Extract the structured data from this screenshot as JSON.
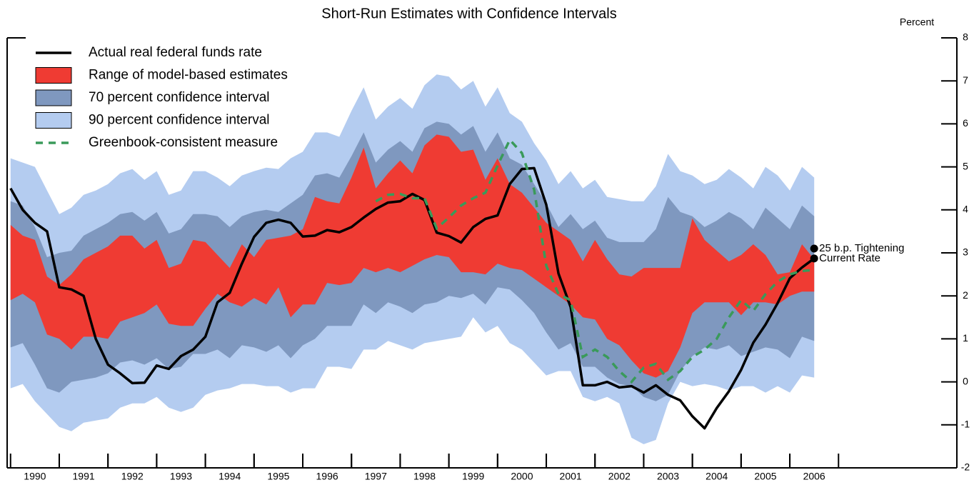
{
  "chart_data": {
    "type": "band-line",
    "title": "Short-Run Estimates with Confidence Intervals",
    "y_axis_label": "Percent",
    "x": [
      1990,
      1990.25,
      1990.5,
      1990.75,
      1991,
      1991.25,
      1991.5,
      1991.75,
      1992,
      1992.25,
      1992.5,
      1992.75,
      1993,
      1993.25,
      1993.5,
      1993.75,
      1994,
      1994.25,
      1994.5,
      1994.75,
      1995,
      1995.25,
      1995.5,
      1995.75,
      1996,
      1996.25,
      1996.5,
      1996.75,
      1997,
      1997.25,
      1997.5,
      1997.75,
      1998,
      1998.25,
      1998.5,
      1998.75,
      1999,
      1999.25,
      1999.5,
      1999.75,
      2000,
      2000.25,
      2000.5,
      2000.75,
      2001,
      2001.25,
      2001.5,
      2001.75,
      2002,
      2002.25,
      2002.5,
      2002.75,
      2003,
      2003.25,
      2003.5,
      2003.75,
      2004,
      2004.25,
      2004.5,
      2004.75,
      2005,
      2005.25,
      2005.5,
      2005.75,
      2006,
      2006.25,
      2006.5
    ],
    "xlim": [
      1989.93,
      2009.43
    ],
    "xticks": [
      {
        "value": 1990.5,
        "label": "1990"
      },
      {
        "value": 1991.5,
        "label": "1991"
      },
      {
        "value": 1992.5,
        "label": "1992"
      },
      {
        "value": 1993.5,
        "label": "1993"
      },
      {
        "value": 1994.5,
        "label": "1994"
      },
      {
        "value": 1995.5,
        "label": "1995"
      },
      {
        "value": 1996.5,
        "label": "1996"
      },
      {
        "value": 1997.5,
        "label": "1997"
      },
      {
        "value": 1998.5,
        "label": "1998"
      },
      {
        "value": 1999.5,
        "label": "1999"
      },
      {
        "value": 2000.5,
        "label": "2000"
      },
      {
        "value": 2001.5,
        "label": "2001"
      },
      {
        "value": 2002.5,
        "label": "2002"
      },
      {
        "value": 2003.5,
        "label": "2003"
      },
      {
        "value": 2004.5,
        "label": "2004"
      },
      {
        "value": 2005.5,
        "label": "2005"
      },
      {
        "value": 2006.5,
        "label": "2006"
      }
    ],
    "ylim": [
      -2,
      8
    ],
    "yticks": [
      -2,
      -1,
      0,
      1,
      2,
      3,
      4,
      5,
      6,
      7,
      8
    ],
    "legend": "top-left",
    "series": [
      {
        "name": "Actual real federal funds rate",
        "style": "line",
        "color": "#000000",
        "values": [
          4.5,
          4.0,
          3.7,
          3.5,
          2.2,
          2.15,
          2.0,
          1.0,
          0.4,
          0.2,
          -0.03,
          -0.02,
          0.38,
          0.3,
          0.6,
          0.75,
          1.05,
          1.85,
          2.07,
          2.75,
          3.37,
          3.7,
          3.77,
          3.7,
          3.38,
          3.4,
          3.53,
          3.48,
          3.6,
          3.82,
          4.02,
          4.17,
          4.2,
          4.37,
          4.23,
          3.47,
          3.39,
          3.24,
          3.6,
          3.79,
          3.87,
          4.6,
          4.95,
          4.97,
          4.12,
          2.52,
          1.74,
          -0.08,
          -0.08,
          0,
          -0.13,
          -0.1,
          -0.25,
          -0.08,
          -0.3,
          -0.43,
          -0.8,
          -1.08,
          -0.61,
          -0.22,
          0.28,
          0.91,
          1.33,
          1.83,
          2.41,
          2.66,
          2.87
        ]
      },
      {
        "name": "Range of model-based estimates",
        "style": "band",
        "color": "#ef3b33",
        "upper": [
          3.65,
          3.4,
          3.3,
          2.45,
          2.25,
          2.5,
          2.85,
          3.0,
          3.15,
          3.4,
          3.4,
          3.1,
          3.3,
          2.65,
          2.75,
          3.3,
          3.25,
          2.95,
          2.65,
          3.2,
          2.9,
          3.3,
          3.35,
          3.4,
          3.55,
          4.3,
          4.2,
          4.15,
          4.75,
          5.45,
          4.5,
          4.85,
          5.15,
          4.85,
          5.5,
          5.75,
          5.7,
          5.35,
          5.4,
          4.7,
          5.2,
          4.6,
          4.4,
          4.05,
          3.7,
          3.5,
          3.3,
          2.8,
          3.3,
          2.85,
          2.5,
          2.45,
          2.65,
          2.65,
          2.65,
          2.65,
          3.8,
          3.3,
          3.05,
          2.8,
          2.95,
          3.2,
          2.95,
          2.5,
          2.55,
          3.2,
          2.85
        ],
        "lower": [
          1.9,
          2.05,
          1.85,
          1.1,
          1.0,
          0.75,
          1.05,
          1.05,
          1.0,
          1.4,
          1.5,
          1.6,
          1.8,
          1.35,
          1.3,
          1.3,
          1.7,
          2.05,
          1.85,
          1.75,
          1.95,
          1.8,
          2.2,
          1.5,
          1.8,
          1.8,
          2.3,
          2.25,
          2.3,
          2.65,
          2.55,
          2.65,
          2.55,
          2.7,
          2.85,
          2.95,
          2.9,
          2.55,
          2.55,
          2.5,
          2.75,
          2.65,
          2.6,
          2.4,
          2.2,
          2.0,
          1.8,
          1.5,
          1.45,
          1.0,
          0.85,
          0.5,
          0.2,
          0.1,
          0.25,
          0.8,
          1.6,
          1.85,
          1.85,
          1.85,
          1.55,
          1.85,
          1.85,
          1.8,
          2.0,
          2.1,
          2.1
        ]
      },
      {
        "name": "70 percent confidence interval",
        "style": "band",
        "color": "#7f98bf",
        "upper": [
          4.2,
          4.1,
          3.6,
          2.9,
          3.0,
          3.05,
          3.4,
          3.55,
          3.7,
          3.9,
          3.95,
          3.75,
          3.95,
          3.45,
          3.55,
          3.9,
          3.9,
          3.85,
          3.6,
          3.85,
          3.95,
          4.0,
          3.95,
          4.15,
          4.35,
          4.8,
          4.85,
          4.75,
          5.25,
          5.8,
          5.1,
          5.4,
          5.6,
          5.35,
          5.9,
          6.05,
          6.0,
          5.75,
          5.95,
          5.35,
          5.8,
          5.2,
          5.05,
          4.6,
          4.15,
          3.6,
          3.9,
          3.55,
          3.75,
          3.35,
          3.25,
          3.25,
          3.25,
          3.55,
          4.3,
          3.95,
          3.85,
          3.6,
          3.75,
          3.95,
          3.8,
          3.55,
          4.05,
          3.8,
          3.55,
          4.1,
          3.85
        ],
        "lower": [
          0.8,
          0.9,
          0.4,
          -0.15,
          -0.25,
          0.0,
          0.05,
          0.1,
          0.2,
          0.45,
          0.5,
          0.4,
          0.55,
          0.3,
          0.35,
          0.65,
          0.65,
          0.75,
          0.55,
          0.85,
          0.8,
          0.7,
          0.85,
          0.55,
          0.85,
          1.0,
          1.3,
          1.3,
          1.3,
          1.8,
          1.6,
          1.85,
          1.75,
          1.6,
          1.8,
          1.85,
          2.0,
          1.95,
          2.05,
          1.8,
          2.2,
          2.15,
          1.9,
          1.6,
          1.15,
          0.75,
          0.9,
          0.35,
          0.35,
          0.1,
          -0.05,
          -0.1,
          -0.35,
          -0.45,
          -0.3,
          0.25,
          0.6,
          0.8,
          0.75,
          0.85,
          0.6,
          0.7,
          0.8,
          0.75,
          0.55,
          1.05,
          0.95
        ]
      },
      {
        "name": "90 percent confidence interval",
        "style": "band",
        "color": "#b4ccf0",
        "upper": [
          5.2,
          5.1,
          5.0,
          4.45,
          3.9,
          4.05,
          4.35,
          4.45,
          4.6,
          4.85,
          4.95,
          4.7,
          4.9,
          4.35,
          4.45,
          4.9,
          4.9,
          4.75,
          4.55,
          4.8,
          4.9,
          4.98,
          4.95,
          5.2,
          5.35,
          5.8,
          5.8,
          5.7,
          6.3,
          6.85,
          6.1,
          6.4,
          6.6,
          6.35,
          6.9,
          7.15,
          7.1,
          6.8,
          7.0,
          6.4,
          6.85,
          6.25,
          6.05,
          5.55,
          5.15,
          4.6,
          4.9,
          4.5,
          4.7,
          4.3,
          4.25,
          4.2,
          4.2,
          4.55,
          5.3,
          4.9,
          4.8,
          4.6,
          4.7,
          4.95,
          4.75,
          4.5,
          5.0,
          4.8,
          4.45,
          5.0,
          4.75
        ],
        "lower": [
          -0.15,
          -0.05,
          -0.45,
          -0.75,
          -1.05,
          -1.15,
          -0.95,
          -0.9,
          -0.85,
          -0.6,
          -0.5,
          -0.5,
          -0.35,
          -0.6,
          -0.7,
          -0.6,
          -0.3,
          -0.2,
          -0.15,
          -0.05,
          -0.05,
          -0.1,
          -0.1,
          -0.25,
          -0.15,
          -0.15,
          0.35,
          0.35,
          0.3,
          0.75,
          0.75,
          0.95,
          0.85,
          0.75,
          0.9,
          0.95,
          1.0,
          1.05,
          1.5,
          1.15,
          1.3,
          0.9,
          0.75,
          0.45,
          0.15,
          0.25,
          0.25,
          -0.35,
          -0.45,
          -0.35,
          -0.5,
          -1.3,
          -1.45,
          -1.35,
          -0.5,
          0.0,
          -0.1,
          -0.05,
          -0.1,
          -0.2,
          -0.1,
          -0.1,
          -0.25,
          -0.1,
          -0.25,
          0.15,
          0.1
        ]
      },
      {
        "name": "Greenbook-consistent measure",
        "style": "dashed",
        "color": "#3a9a5a",
        "values": [
          null,
          null,
          null,
          null,
          null,
          null,
          null,
          null,
          null,
          null,
          null,
          null,
          null,
          null,
          null,
          null,
          null,
          null,
          null,
          null,
          null,
          null,
          null,
          null,
          null,
          null,
          null,
          null,
          null,
          null,
          4.2,
          4.35,
          4.37,
          4.27,
          4.27,
          3.57,
          3.82,
          4.1,
          4.27,
          4.4,
          5.03,
          5.63,
          5.32,
          4.47,
          2.7,
          2.04,
          1.9,
          0.58,
          0.75,
          0.58,
          0.25,
          0,
          0.33,
          0.42,
          0.05,
          0.25,
          0.58,
          0.75,
          1.0,
          1.5,
          1.9,
          1.65,
          2.04,
          2.33,
          2.5,
          2.58,
          2.6
        ]
      }
    ],
    "points": [
      {
        "label": "25 b.p. Tightening",
        "x": 2006.5,
        "y": 3.1
      },
      {
        "label": "Current Rate",
        "x": 2006.5,
        "y": 2.87
      }
    ]
  }
}
